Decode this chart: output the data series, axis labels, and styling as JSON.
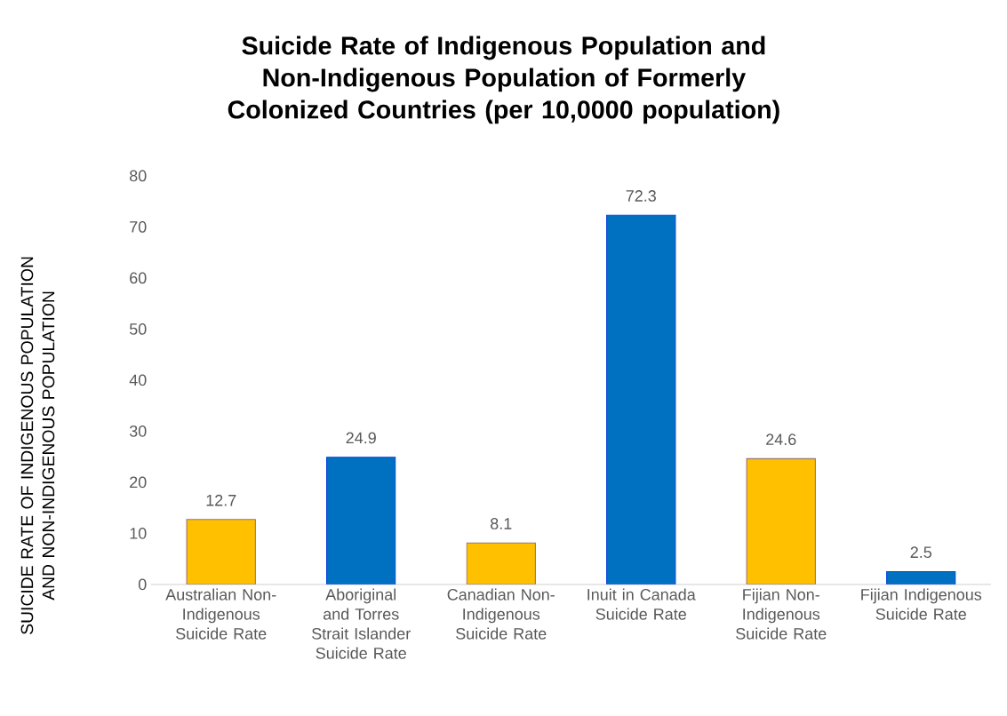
{
  "chart_data": {
    "type": "bar",
    "title": "Suicide Rate of Indigenous Population and Non-Indigenous Population of Formerly Colonized Countries (per 10,0000 population)",
    "ylabel": "SUICIDE RATE OF INDIGENOUS POPULATION AND NON-INDIGENOUS POPULATION",
    "categories": [
      "Australian Non-Indigenous Suicide Rate",
      "Aboriginal and Torres Strait Islander Suicide Rate",
      "Canadian Non-Indigenous Suicide Rate",
      "Inuit in Canada Suicide Rate",
      "Fijian Non-Indigenous Suicide Rate",
      "Fijian Indigenous Suicide Rate"
    ],
    "values": [
      12.7,
      24.9,
      8.1,
      72.3,
      24.6,
      2.5
    ],
    "value_labels": [
      "12.7",
      "24.9",
      "8.1",
      "72.3",
      "24.6",
      "2.5"
    ],
    "colors": [
      "#ffc000",
      "#0070c0",
      "#ffc000",
      "#0070c0",
      "#ffc000",
      "#0070c0"
    ],
    "ylim": [
      0,
      80
    ],
    "yticks": [
      0,
      10,
      20,
      30,
      40,
      50,
      60,
      70,
      80
    ],
    "grid": false
  }
}
